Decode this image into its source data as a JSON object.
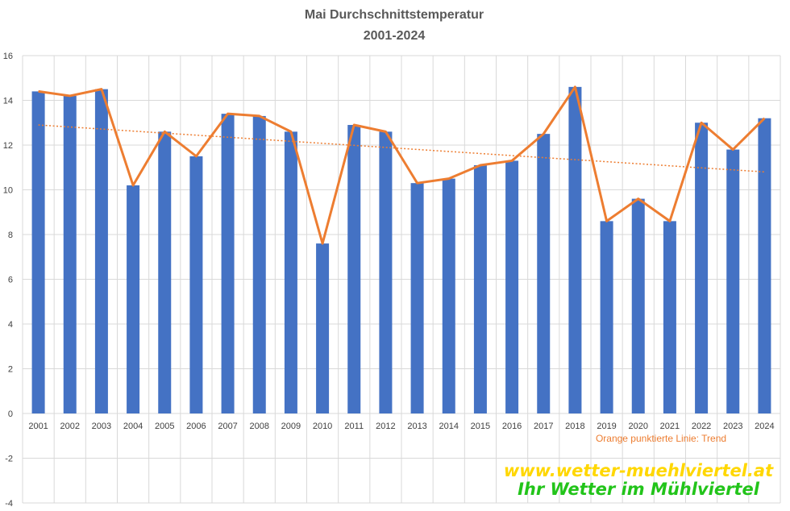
{
  "chart_data": {
    "type": "bar",
    "title": "Mai Durchschnittstemperatur",
    "subtitle": "2001-2024",
    "categories": [
      "2001",
      "2002",
      "2003",
      "2004",
      "2005",
      "2006",
      "2007",
      "2008",
      "2009",
      "2010",
      "2011",
      "2012",
      "2013",
      "2014",
      "2015",
      "2016",
      "2017",
      "2018",
      "2019",
      "2020",
      "2021",
      "2022",
      "2023",
      "2024"
    ],
    "series": [
      {
        "values": [
          14.4,
          14.2,
          14.5,
          10.2,
          12.6,
          11.5,
          13.4,
          13.3,
          12.6,
          7.6,
          12.9,
          12.6,
          10.3,
          10.5,
          11.1,
          11.3,
          12.5,
          14.6,
          8.6,
          9.6,
          8.6,
          13.0,
          11.8,
          13.2
        ]
      }
    ],
    "trend": {
      "start": 12.9,
      "end": 10.8
    },
    "ylim": [
      -4,
      16
    ],
    "yticks": [
      -4,
      -2,
      0,
      2,
      4,
      6,
      8,
      10,
      12,
      14,
      16
    ],
    "grid": true,
    "annotation": "Orange punktierte Linie: Trend",
    "colors": {
      "bar": "#4472c4",
      "line": "#ed7d31",
      "grid": "#d9d9d9"
    }
  },
  "branding": {
    "url": "www.wetter-muehlviertel.at",
    "slogan": "Ihr Wetter im Mühlviertel",
    "url_color": "#ffd700",
    "slogan_color": "#22c41a"
  }
}
